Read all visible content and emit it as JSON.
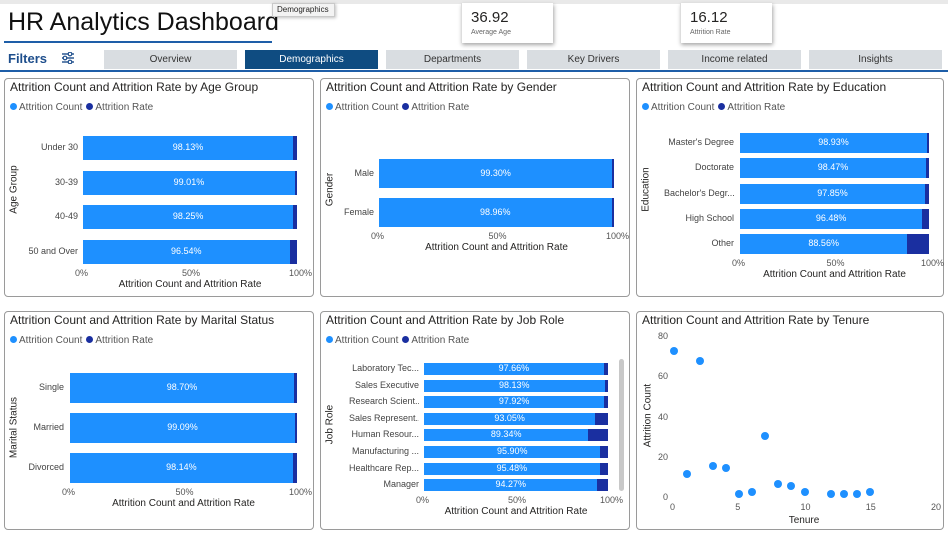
{
  "header": {
    "title": "HR Analytics Dashboard",
    "tooltip": "Demographics",
    "kpis": [
      {
        "value": "36.92",
        "label": "Average Age"
      },
      {
        "value": "16.12",
        "label": "Attrition Rate"
      }
    ],
    "filters_label": "Filters"
  },
  "tabs": [
    "Overview",
    "Demographics",
    "Departments",
    "Key Drivers",
    "Income related",
    "Insights"
  ],
  "active_tab": "Demographics",
  "colors": {
    "attrition_count": "#1e90ff",
    "attrition_rate": "#1a2fa0",
    "active_tab": "#0f4c81"
  },
  "legend": {
    "count": "Attrition Count",
    "rate": "Attrition Rate"
  },
  "chart_data": [
    {
      "type": "bar",
      "title": "Attrition Count and Attrition Rate by Age Group",
      "ylabel": "Age Group",
      "xlabel": "Attrition Count and Attrition Rate",
      "categories": [
        "Under 30",
        "30-39",
        "40-49",
        "50 and Over"
      ],
      "count_pct": [
        98.13,
        99.01,
        98.25,
        96.54
      ],
      "labels": [
        "98.13%",
        "99.01%",
        "98.25%",
        "96.54%"
      ],
      "ticks": [
        "0%",
        "50%",
        "100%"
      ]
    },
    {
      "type": "bar",
      "title": "Attrition Count and Attrition Rate by Gender",
      "ylabel": "Gender",
      "xlabel": "Attrition Count and Attrition Rate",
      "categories": [
        "Male",
        "Female"
      ],
      "count_pct": [
        99.3,
        98.96
      ],
      "labels": [
        "99.30%",
        "98.96%"
      ],
      "ticks": [
        "0%",
        "50%",
        "100%"
      ]
    },
    {
      "type": "bar",
      "title": "Attrition Count and Attrition Rate by Education",
      "ylabel": "Education",
      "xlabel": "Attrition Count and Attrition Rate",
      "categories": [
        "Master's Degree",
        "Doctorate",
        "Bachelor's Degr...",
        "High School",
        "Other"
      ],
      "count_pct": [
        98.93,
        98.47,
        97.85,
        96.48,
        88.56
      ],
      "labels": [
        "98.93%",
        "98.47%",
        "97.85%",
        "96.48%",
        "88.56%"
      ],
      "ticks": [
        "0%",
        "50%",
        "100%"
      ]
    },
    {
      "type": "bar",
      "title": "Attrition Count and Attrition Rate by Marital Status",
      "ylabel": "Marital Status",
      "xlabel": "Attrition Count and Attrition Rate",
      "categories": [
        "Single",
        "Married",
        "Divorced"
      ],
      "count_pct": [
        98.7,
        99.09,
        98.14
      ],
      "labels": [
        "98.70%",
        "99.09%",
        "98.14%"
      ],
      "ticks": [
        "0%",
        "50%",
        "100%"
      ]
    },
    {
      "type": "bar",
      "title": "Attrition Count and Attrition Rate by Job Role",
      "ylabel": "Job Role",
      "xlabel": "Attrition Count and Attrition Rate",
      "categories": [
        "Laboratory Tec...",
        "Sales Executive",
        "Research Scient...",
        "Sales Represent...",
        "Human Resour...",
        "Manufacturing ...",
        "Healthcare Rep...",
        "Manager"
      ],
      "count_pct": [
        97.66,
        98.13,
        97.92,
        93.05,
        89.34,
        95.9,
        95.48,
        94.27
      ],
      "labels": [
        "97.66%",
        "98.13%",
        "97.92%",
        "93.05%",
        "89.34%",
        "95.90%",
        "95.48%",
        "94.27%"
      ],
      "ticks": [
        "0%",
        "50%",
        "100%"
      ]
    },
    {
      "type": "scatter",
      "title": "Attrition Count and Attrition Rate by Tenure",
      "xlabel": "Tenure",
      "ylabel": "Attrition Count",
      "xlim": [
        0,
        20
      ],
      "ylim": [
        0,
        80
      ],
      "xticks": [
        "0",
        "5",
        "10",
        "15",
        "20"
      ],
      "yticks": [
        "0",
        "20",
        "40",
        "60",
        "80"
      ],
      "points": [
        [
          0,
          73
        ],
        [
          1,
          12
        ],
        [
          2,
          68
        ],
        [
          3,
          16
        ],
        [
          4,
          15
        ],
        [
          5,
          2
        ],
        [
          6,
          3
        ],
        [
          7,
          31
        ],
        [
          8,
          7
        ],
        [
          9,
          6
        ],
        [
          10,
          3
        ],
        [
          12,
          2
        ],
        [
          13,
          2
        ],
        [
          14,
          2
        ],
        [
          15,
          3
        ]
      ]
    }
  ]
}
